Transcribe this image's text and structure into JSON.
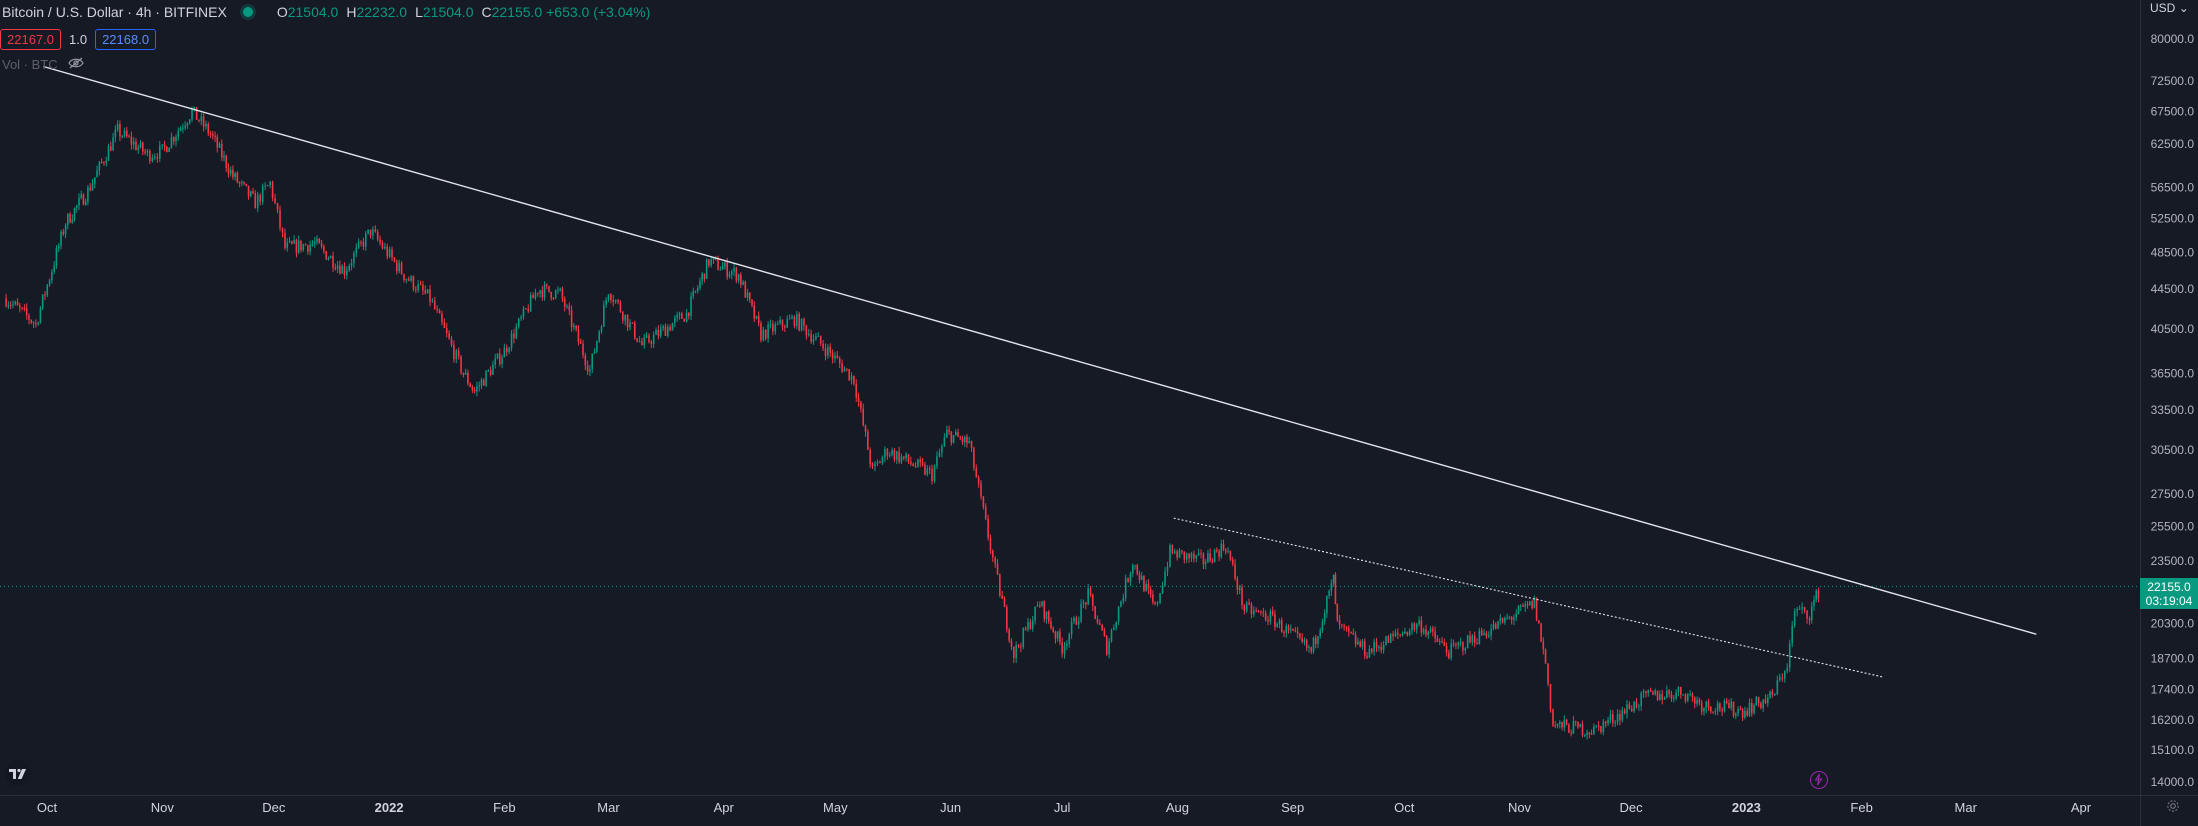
{
  "header": {
    "title": "Bitcoin / U.S. Dollar · 4h · BITFINEX",
    "ohlc": [
      {
        "key": "O",
        "value": "21504.0"
      },
      {
        "key": "H",
        "value": "22232.0"
      },
      {
        "key": "L",
        "value": "21504.0"
      },
      {
        "key": "C",
        "value": "22155.0 +653.0 (+3.04%)"
      }
    ],
    "bid": "22167.0",
    "qty": "1.0",
    "ask": "22168.0",
    "volume_label": "Vol · BTC"
  },
  "currency_label": "USD",
  "last_price": {
    "value": "22155.0",
    "countdown": "03:19:04"
  },
  "icons": [
    "tradingview-logo-icon",
    "lightning-icon",
    "eye-off-icon",
    "settings-gear-icon"
  ],
  "colors": {
    "background": "#161a25",
    "up": "#089981",
    "down": "#f23645",
    "line": "#e0e3eb"
  },
  "chart_data": {
    "type": "candlestick",
    "scale": "log",
    "symbol": "Bitcoin / U.S. Dollar",
    "interval": "4h",
    "exchange": "BITFINEX",
    "y_ticks": [
      80000,
      72500,
      67500,
      62500,
      56500,
      52500,
      48500,
      44500,
      40500,
      36500,
      33500,
      30500,
      27500,
      25500,
      23500,
      20300,
      18700,
      17400,
      16200,
      15100,
      14000
    ],
    "y_tick_labels": [
      "80000.0",
      "72500.0",
      "67500.0",
      "62500.0",
      "56500.0",
      "52500.0",
      "48500.0",
      "44500.0",
      "40500.0",
      "36500.0",
      "33500.0",
      "30500.0",
      "27500.0",
      "25500.0",
      "23500.0",
      "20300.0",
      "18700.0",
      "17400.0",
      "16200.0",
      "15100.0",
      "14000.0"
    ],
    "x_ticks": [
      "2021-10-01",
      "2021-11-01",
      "2021-12-01",
      "2022-01-01",
      "2022-02-01",
      "2022-03-01",
      "2022-04-01",
      "2022-05-01",
      "2022-06-01",
      "2022-07-01",
      "2022-08-01",
      "2022-09-01",
      "2022-10-01",
      "2022-11-01",
      "2022-12-01",
      "2023-01-01",
      "2023-02-01",
      "2023-03-01",
      "2023-04-01"
    ],
    "x_tick_labels": [
      "Oct",
      "Nov",
      "Dec",
      "2022",
      "Feb",
      "Mar",
      "Apr",
      "May",
      "Jun",
      "Jul",
      "Aug",
      "Sep",
      "Oct",
      "Nov",
      "Dec",
      "2023",
      "Feb",
      "Mar",
      "Apr"
    ],
    "price_path": [
      [
        "2021-09-20",
        43500
      ],
      [
        "2021-09-28",
        41000
      ],
      [
        "2021-10-06",
        52000
      ],
      [
        "2021-10-12",
        56000
      ],
      [
        "2021-10-20",
        64500
      ],
      [
        "2021-10-28",
        61000
      ],
      [
        "2021-11-01",
        61500
      ],
      [
        "2021-11-09",
        67500
      ],
      [
        "2021-11-14",
        64000
      ],
      [
        "2021-11-20",
        58000
      ],
      [
        "2021-11-26",
        54500
      ],
      [
        "2021-11-30",
        57000
      ],
      [
        "2021-12-04",
        49000
      ],
      [
        "2021-12-12",
        49500
      ],
      [
        "2021-12-20",
        46500
      ],
      [
        "2021-12-27",
        51000
      ],
      [
        "2022-01-05",
        46000
      ],
      [
        "2022-01-12",
        43500
      ],
      [
        "2022-01-21",
        36500
      ],
      [
        "2022-01-24",
        35000
      ],
      [
        "2022-02-01",
        38500
      ],
      [
        "2022-02-10",
        44500
      ],
      [
        "2022-02-16",
        44000
      ],
      [
        "2022-02-24",
        36800
      ],
      [
        "2022-03-01",
        44500
      ],
      [
        "2022-03-10",
        39000
      ],
      [
        "2022-03-22",
        42000
      ],
      [
        "2022-03-28",
        47500
      ],
      [
        "2022-04-05",
        46000
      ],
      [
        "2022-04-11",
        40000
      ],
      [
        "2022-04-20",
        41500
      ],
      [
        "2022-04-29",
        38500
      ],
      [
        "2022-05-06",
        36000
      ],
      [
        "2022-05-11",
        29000
      ],
      [
        "2022-05-15",
        30500
      ],
      [
        "2022-05-27",
        28800
      ],
      [
        "2022-05-31",
        31700
      ],
      [
        "2022-06-06",
        31000
      ],
      [
        "2022-06-13",
        23000
      ],
      [
        "2022-06-18",
        18900
      ],
      [
        "2022-06-25",
        21300
      ],
      [
        "2022-07-01",
        19200
      ],
      [
        "2022-07-08",
        21700
      ],
      [
        "2022-07-13",
        19200
      ],
      [
        "2022-07-20",
        23500
      ],
      [
        "2022-07-26",
        21000
      ],
      [
        "2022-07-30",
        24000
      ],
      [
        "2022-08-08",
        23500
      ],
      [
        "2022-08-14",
        24400
      ],
      [
        "2022-08-19",
        21000
      ],
      [
        "2022-08-26",
        20600
      ],
      [
        "2022-09-06",
        19000
      ],
      [
        "2022-09-12",
        22500
      ],
      [
        "2022-09-13",
        20200
      ],
      [
        "2022-09-21",
        19000
      ],
      [
        "2022-10-05",
        20300
      ],
      [
        "2022-10-13",
        19000
      ],
      [
        "2022-10-25",
        20100
      ],
      [
        "2022-11-05",
        21300
      ],
      [
        "2022-11-08",
        18500
      ],
      [
        "2022-11-10",
        16000
      ],
      [
        "2022-11-21",
        15800
      ],
      [
        "2022-12-05",
        17100
      ],
      [
        "2022-12-15",
        17300
      ],
      [
        "2022-12-20",
        16800
      ],
      [
        "2022-12-31",
        16550
      ],
      [
        "2023-01-08",
        17100
      ],
      [
        "2023-01-12",
        18500
      ],
      [
        "2023-01-14",
        20900
      ],
      [
        "2023-01-18",
        20800
      ],
      [
        "2023-01-21",
        22155
      ]
    ],
    "drawings": [
      {
        "name": "main-trendline",
        "style": "solid",
        "points": [
          [
            "2021-09-30",
            75000
          ],
          [
            "2023-03-20",
            19800
          ]
        ]
      },
      {
        "name": "lower-trendline",
        "style": "dotted",
        "points": [
          [
            "2022-07-31",
            26000
          ],
          [
            "2023-02-07",
            17900
          ]
        ]
      }
    ],
    "last_price_line": 22155
  }
}
